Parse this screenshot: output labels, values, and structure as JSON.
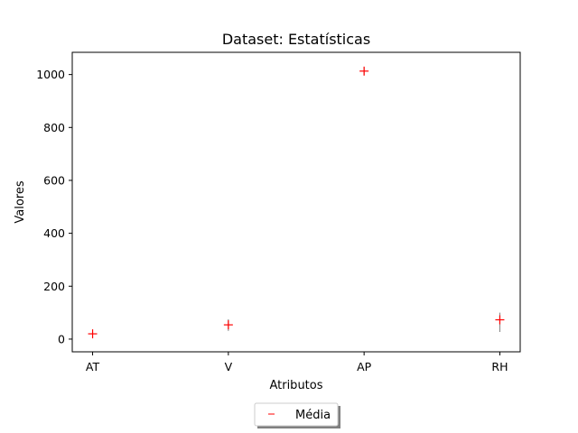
{
  "chart_data": {
    "type": "scatter",
    "title": "Dataset: Estatísticas",
    "xlabel": "Atributos",
    "ylabel": "Valores",
    "categories": [
      "AT",
      "V",
      "AP",
      "RH"
    ],
    "ylim": [
      -48,
      1084
    ],
    "yticks": [
      0,
      200,
      400,
      600,
      800,
      1000
    ],
    "series": [
      {
        "name": "Média",
        "color": "#ff0000",
        "marker": "plus",
        "values": [
          20,
          54,
          1013,
          73
        ],
        "error_low": [
          15,
          31,
          998,
          27
        ],
        "error_high": [
          25,
          75,
          1027,
          100
        ]
      }
    ],
    "errorbar_color": "#808080",
    "legend": {
      "placement": "bottom-center",
      "shadow": true
    },
    "grid": false
  }
}
